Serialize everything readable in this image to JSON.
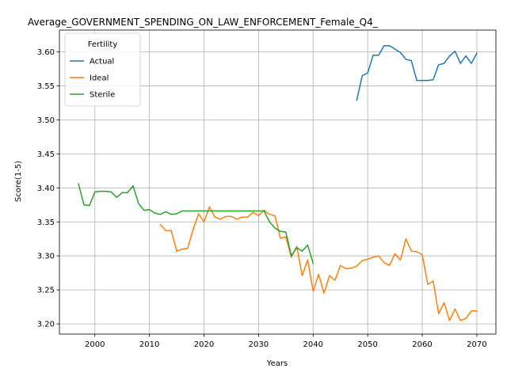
{
  "chart_data": {
    "type": "line",
    "title": "Average_GOVERNMENT_SPENDING_ON_LAW_ENFORCEMENT_Female_Q4_",
    "xlabel": "Years",
    "ylabel": "Score(1-5)",
    "xlim": [
      1993.5,
      2073.5
    ],
    "ylim": [
      3.185,
      3.632
    ],
    "x_ticks": [
      2000,
      2010,
      2020,
      2030,
      2040,
      2050,
      2060,
      2070
    ],
    "y_ticks": [
      3.2,
      3.25,
      3.3,
      3.35,
      3.4,
      3.45,
      3.5,
      3.55,
      3.6
    ],
    "grid": true,
    "legend": {
      "title": "Fertility",
      "position": "upper-left"
    },
    "series": [
      {
        "name": "Actual",
        "color": "#1f77b4",
        "x": [
          2048,
          2049,
          2050,
          2051,
          2052,
          2053,
          2054,
          2055,
          2056,
          2057,
          2058,
          2059,
          2060,
          2061,
          2062,
          2063,
          2064,
          2065,
          2066,
          2067,
          2068,
          2069,
          2070
        ],
        "y": [
          3.529,
          3.565,
          3.569,
          3.595,
          3.595,
          3.609,
          3.609,
          3.604,
          3.599,
          3.589,
          3.587,
          3.558,
          3.558,
          3.558,
          3.559,
          3.581,
          3.583,
          3.594,
          3.601,
          3.583,
          3.594,
          3.583,
          3.598
        ]
      },
      {
        "name": "Ideal",
        "color": "#ff7f0e",
        "x": [
          2012,
          2013,
          2014,
          2015,
          2016,
          2017,
          2018,
          2019,
          2020,
          2021,
          2022,
          2023,
          2024,
          2025,
          2026,
          2027,
          2028,
          2029,
          2030,
          2031,
          2032,
          2033,
          2034,
          2035,
          2036,
          2037,
          2038,
          2039,
          2040,
          2041,
          2042,
          2043,
          2044,
          2045,
          2046,
          2047,
          2048,
          2049,
          2050,
          2051,
          2052,
          2053,
          2054,
          2055,
          2056,
          2057,
          2058,
          2059,
          2060,
          2061,
          2062,
          2063,
          2064,
          2065,
          2066,
          2067,
          2068,
          2069,
          2070
        ],
        "y": [
          3.346,
          3.337,
          3.337,
          3.307,
          3.31,
          3.311,
          3.339,
          3.362,
          3.35,
          3.372,
          3.357,
          3.354,
          3.358,
          3.358,
          3.354,
          3.357,
          3.357,
          3.364,
          3.359,
          3.367,
          3.361,
          3.359,
          3.326,
          3.328,
          3.298,
          3.314,
          3.271,
          3.294,
          3.248,
          3.273,
          3.245,
          3.271,
          3.264,
          3.286,
          3.281,
          3.282,
          3.285,
          3.293,
          3.295,
          3.298,
          3.3,
          3.29,
          3.286,
          3.303,
          3.294,
          3.325,
          3.307,
          3.306,
          3.302,
          3.258,
          3.263,
          3.215,
          3.231,
          3.205,
          3.222,
          3.205,
          3.208,
          3.219,
          3.219
        ]
      },
      {
        "name": "Sterile",
        "color": "#2ca02c",
        "x": [
          1997,
          1998,
          1999,
          2000,
          2001,
          2002,
          2003,
          2004,
          2005,
          2006,
          2007,
          2008,
          2009,
          2010,
          2011,
          2012,
          2013,
          2014,
          2015,
          2016,
          2017,
          2018,
          2019,
          2020,
          2021,
          2022,
          2023,
          2024,
          2025,
          2026,
          2027,
          2028,
          2029,
          2030,
          2031,
          2032,
          2033,
          2034,
          2035,
          2036,
          2037,
          2038,
          2039,
          2040
        ],
        "y": [
          3.406,
          3.375,
          3.374,
          3.394,
          3.395,
          3.395,
          3.394,
          3.386,
          3.393,
          3.393,
          3.403,
          3.377,
          3.367,
          3.368,
          3.363,
          3.361,
          3.365,
          3.361,
          3.362,
          3.366,
          3.366,
          3.366,
          3.366,
          3.366,
          3.366,
          3.366,
          3.366,
          3.366,
          3.366,
          3.366,
          3.366,
          3.366,
          3.366,
          3.366,
          3.366,
          3.35,
          3.341,
          3.336,
          3.335,
          3.3,
          3.312,
          3.307,
          3.316,
          3.289
        ]
      }
    ]
  }
}
